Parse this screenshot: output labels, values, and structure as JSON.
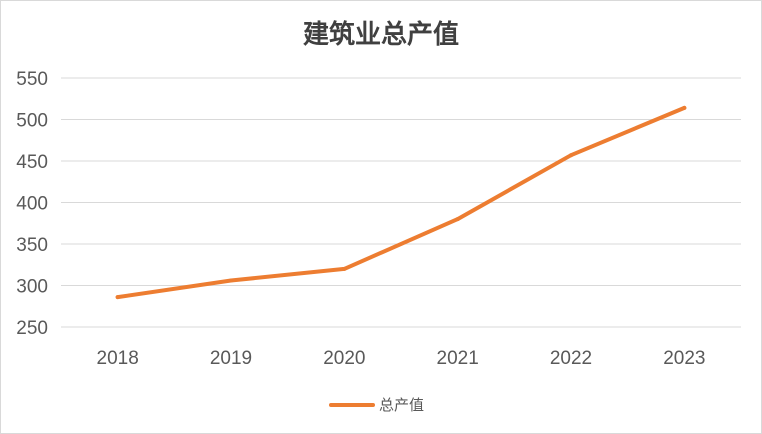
{
  "chart_data": {
    "type": "line",
    "title": "建筑业总产值",
    "categories": [
      "2018",
      "2019",
      "2020",
      "2021",
      "2022",
      "2023"
    ],
    "series": [
      {
        "name": "总产值",
        "values": [
          286,
          306,
          320,
          380,
          457,
          514
        ],
        "color": "#ED7D31"
      }
    ],
    "ylim": [
      250,
      550
    ],
    "yticks": [
      250,
      300,
      350,
      400,
      450,
      500,
      550
    ],
    "xlabel": "",
    "ylabel": "",
    "grid": true,
    "legend": "bottom"
  }
}
